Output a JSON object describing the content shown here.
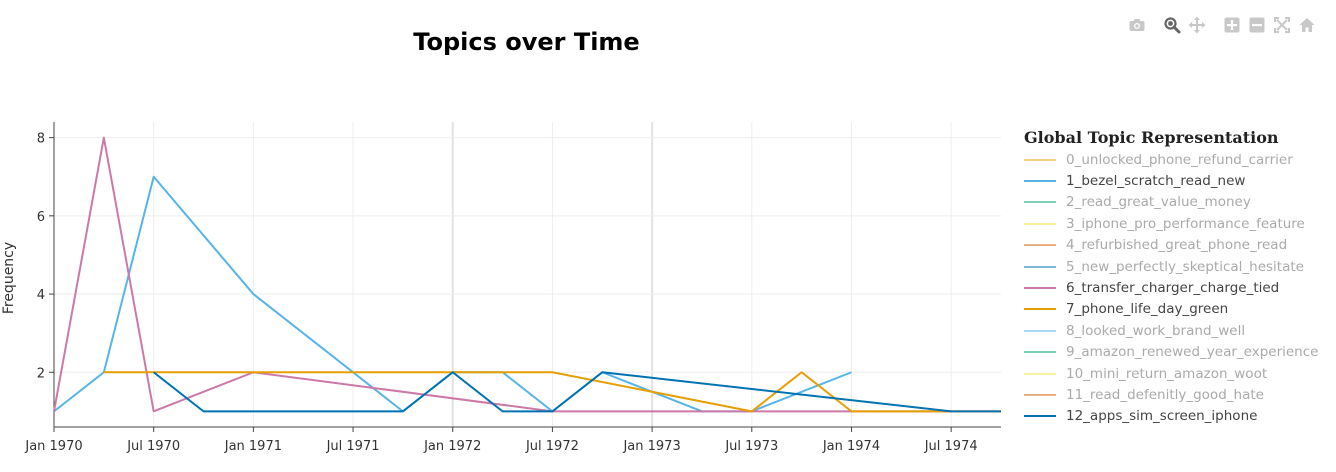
{
  "modebar": {
    "icons": [
      "camera-icon",
      "zoom-icon",
      "pan-icon",
      "zoom-in-icon",
      "zoom-out-icon",
      "autoscale-icon",
      "home-icon"
    ]
  },
  "chart_data": {
    "type": "line",
    "title": "Topics over Time",
    "xlabel": "",
    "ylabel": "Frequency",
    "x_ticks": [
      "Jan 1970",
      "Jul 1970",
      "Jan 1971",
      "Jul 1971",
      "Jan 1972",
      "Jul 1972",
      "Jan 1973",
      "Jul 1973",
      "Jan 1974",
      "Jul 1974"
    ],
    "y_ticks": [
      2,
      4,
      6,
      8
    ],
    "xlim": [
      "1970-01-01",
      "1974-10-01"
    ],
    "ylim": [
      0.6,
      8.4
    ],
    "grid": true,
    "legend_title": "Global Topic Representation",
    "legend_position": "right",
    "series": [
      {
        "name": "0_unlocked_phone_refund_carrier",
        "color": "#E69F00",
        "visible": false,
        "points": []
      },
      {
        "name": "1_bezel_scratch_read_new",
        "color": "#56B4E9",
        "visible": true,
        "points": [
          [
            "1970-01-01",
            1
          ],
          [
            "1970-04-01",
            2
          ],
          [
            "1970-07-01",
            7
          ],
          [
            "1971-01-01",
            4
          ],
          [
            "1971-10-01",
            1
          ],
          [
            "1972-01-01",
            2
          ],
          [
            "1972-04-01",
            2
          ],
          [
            "1972-07-01",
            1
          ],
          [
            "1972-10-01",
            2
          ],
          [
            "1973-04-01",
            1
          ],
          [
            "1973-07-01",
            1
          ],
          [
            "1974-01-01",
            2
          ]
        ]
      },
      {
        "name": "2_read_great_value_money",
        "color": "#009E73",
        "visible": false,
        "points": []
      },
      {
        "name": "3_iphone_pro_performance_feature",
        "color": "#F0E442",
        "visible": false,
        "points": []
      },
      {
        "name": "4_refurbished_great_phone_read",
        "color": "#D55E00",
        "visible": false,
        "points": []
      },
      {
        "name": "5_new_perfectly_skeptical_hesitate",
        "color": "#0072B2",
        "visible": false,
        "points": []
      },
      {
        "name": "6_transfer_charger_charge_tied",
        "color": "#CC79A7",
        "visible": true,
        "points": [
          [
            "1970-01-01",
            1
          ],
          [
            "1970-04-01",
            8
          ],
          [
            "1970-07-01",
            1
          ],
          [
            "1971-01-01",
            2
          ],
          [
            "1972-07-01",
            1
          ],
          [
            "1974-10-01",
            1
          ]
        ]
      },
      {
        "name": "7_phone_life_day_green",
        "color": "#E69F00",
        "visible": true,
        "points": [
          [
            "1970-04-01",
            2
          ],
          [
            "1972-07-01",
            2
          ],
          [
            "1973-07-01",
            1
          ],
          [
            "1973-10-01",
            2
          ],
          [
            "1974-01-01",
            1
          ],
          [
            "1974-10-01",
            1
          ]
        ]
      },
      {
        "name": "8_looked_work_brand_well",
        "color": "#56B4E9",
        "visible": false,
        "points": []
      },
      {
        "name": "9_amazon_renewed_year_experience",
        "color": "#009E73",
        "visible": false,
        "points": []
      },
      {
        "name": "10_mini_return_amazon_woot",
        "color": "#F0E442",
        "visible": false,
        "points": []
      },
      {
        "name": "11_read_defenitly_good_hate",
        "color": "#D55E00",
        "visible": false,
        "points": []
      },
      {
        "name": "12_apps_sim_screen_iphone",
        "color": "#0072B2",
        "visible": true,
        "points": [
          [
            "1970-07-01",
            2
          ],
          [
            "1970-10-01",
            1
          ],
          [
            "1971-10-01",
            1
          ],
          [
            "1972-01-01",
            2
          ],
          [
            "1972-04-01",
            1
          ],
          [
            "1972-07-01",
            1
          ],
          [
            "1972-10-01",
            2
          ],
          [
            "1974-07-01",
            1
          ],
          [
            "1974-10-01",
            1
          ]
        ]
      }
    ]
  }
}
